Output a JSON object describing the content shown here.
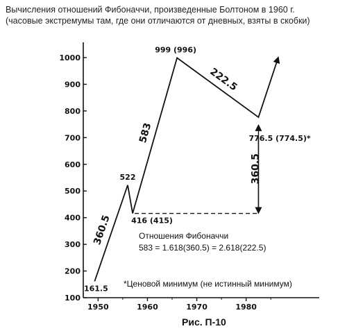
{
  "header": {
    "title_line1": "Вычисления отношений Фибоначчи, произведенные Болтоном в 1960 г.",
    "title_line2": "(часовые экстремумы там, где они отличаются от дневных, взяты в скобки)"
  },
  "chart_data": {
    "type": "line",
    "xlim": [
      1947,
      1992
    ],
    "ylim": [
      100,
      1000
    ],
    "x_ticks": [
      1950,
      1960,
      1970,
      1980
    ],
    "y_ticks": [
      100,
      200,
      300,
      400,
      500,
      600,
      700,
      800,
      900,
      1000
    ],
    "x_tick_labels": [
      "1950",
      "1960",
      "1970",
      "1980"
    ],
    "y_tick_labels": [
      "100",
      "200",
      "300",
      "400",
      "500",
      "600",
      "700",
      "800",
      "900",
      "1000"
    ],
    "grid": false,
    "series": [
      {
        "x": [
          1949.3,
          1956.0,
          1957.0,
          1966.0,
          1982.5,
          1986.5
        ],
        "y": [
          161.5,
          522,
          416,
          999,
          776.5,
          1000
        ],
        "end_arrow": true
      }
    ],
    "points": [
      {
        "x": 1949.3,
        "y": 161.5,
        "label": "161.5"
      },
      {
        "x": 1956.0,
        "y": 522,
        "label": "522"
      },
      {
        "x": 1957.0,
        "y": 416,
        "label": "416 (415)"
      },
      {
        "x": 1966.0,
        "y": 999,
        "label": "999 (996)"
      },
      {
        "x": 1982.5,
        "y": 776.5,
        "label": "776.5 (774.5)*"
      }
    ],
    "move_labels": [
      {
        "text": "360.5",
        "from": [
          1949.3,
          161.5
        ],
        "to": [
          1956.0,
          522
        ]
      },
      {
        "text": "583",
        "from": [
          1957.0,
          416
        ],
        "to": [
          1966.0,
          999
        ]
      },
      {
        "text": "222.5",
        "from": [
          1966.0,
          999
        ],
        "to": [
          1982.5,
          776.5
        ]
      },
      {
        "text": "360.5",
        "from": [
          1982.5,
          416
        ],
        "to": [
          1982.5,
          776.5
        ]
      }
    ],
    "reference_dashed": {
      "x1": 1957.0,
      "x2": 1982.5,
      "y": 416
    },
    "annotations": {
      "ratio_title": "Отношения Фибоначчи",
      "ratio_formula": "583 = 1.618(360.5) = 2.618(222.5)",
      "footnote": "*Ценовой минимум (не истинный минимум)"
    },
    "caption": "Рис. П-10"
  }
}
